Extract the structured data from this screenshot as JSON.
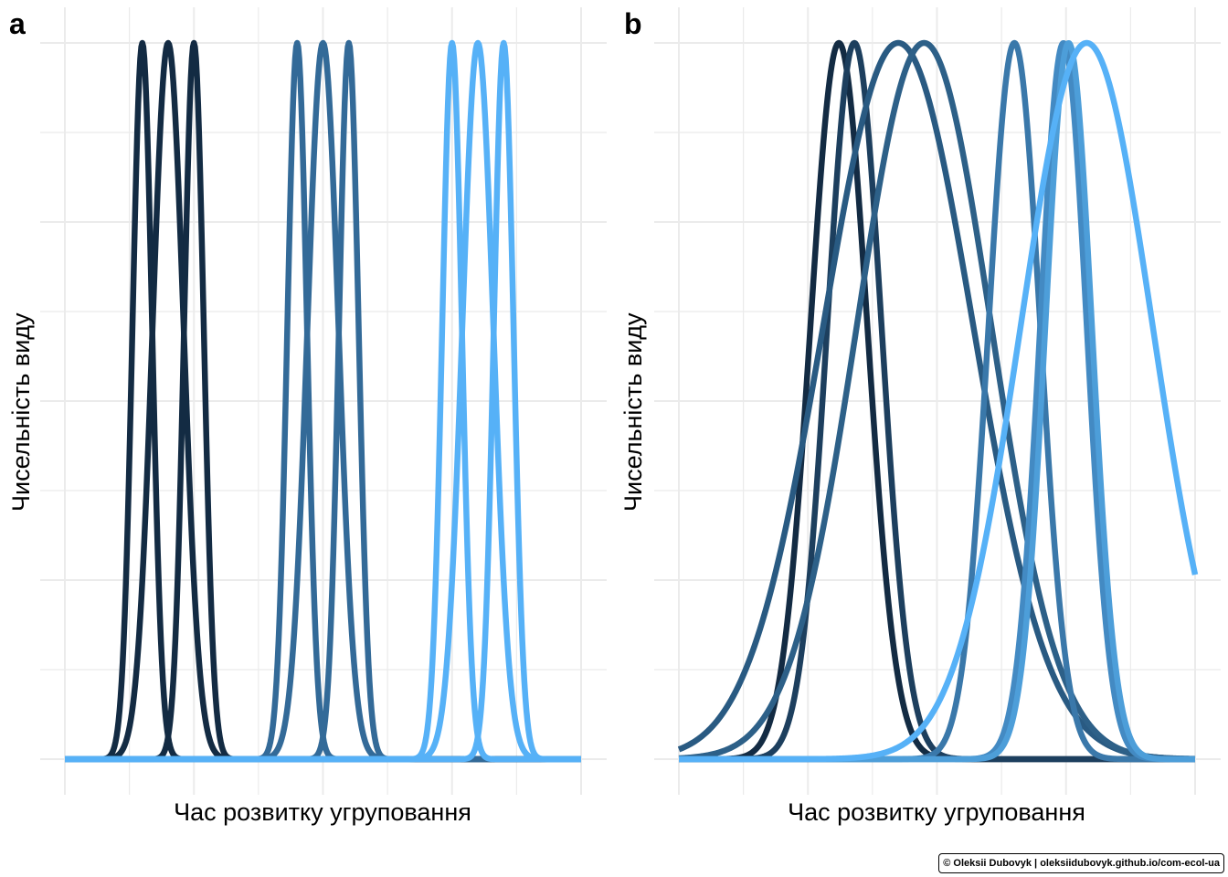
{
  "chart_data": [
    {
      "panel": "a",
      "type": "line",
      "xlabel": "Час розвитку угруповання",
      "ylabel": "Чисельність виду",
      "xlim": [
        0,
        20
      ],
      "ylim": [
        0,
        1
      ],
      "grid": true,
      "legend": "none",
      "series": [
        {
          "mu": 3.0,
          "sigma": 0.38,
          "color": "#132B43"
        },
        {
          "mu": 4.0,
          "sigma": 0.6,
          "color": "#132B43"
        },
        {
          "mu": 5.0,
          "sigma": 0.38,
          "color": "#132B43"
        },
        {
          "mu": 9.0,
          "sigma": 0.38,
          "color": "#336A98"
        },
        {
          "mu": 10.0,
          "sigma": 0.6,
          "color": "#336A98"
        },
        {
          "mu": 11.0,
          "sigma": 0.38,
          "color": "#336A98"
        },
        {
          "mu": 15.0,
          "sigma": 0.38,
          "color": "#56B1F7"
        },
        {
          "mu": 16.0,
          "sigma": 0.6,
          "color": "#56B1F7"
        },
        {
          "mu": 17.0,
          "sigma": 0.38,
          "color": "#56B1F7"
        }
      ]
    },
    {
      "panel": "b",
      "type": "line",
      "xlabel": "Час розвитку угруповання",
      "ylabel": "Чисельність виду",
      "xlim": [
        0,
        20
      ],
      "ylim": [
        0,
        1
      ],
      "grid": true,
      "legend": "none",
      "series": [
        {
          "mu": 6.2,
          "sigma": 1.1,
          "color": "#132B43"
        },
        {
          "mu": 6.8,
          "sigma": 1.05,
          "color": "#1D3F5E"
        },
        {
          "mu": 8.5,
          "sigma": 2.9,
          "color": "#295A82"
        },
        {
          "mu": 9.5,
          "sigma": 2.6,
          "color": "#2D6088"
        },
        {
          "mu": 13.0,
          "sigma": 1.0,
          "color": "#3A78AA"
        },
        {
          "mu": 14.9,
          "sigma": 0.9,
          "color": "#438AC3"
        },
        {
          "mu": 15.1,
          "sigma": 0.9,
          "color": "#4D9ED9"
        },
        {
          "mu": 15.8,
          "sigma": 2.55,
          "color": "#56B1F7"
        }
      ]
    }
  ],
  "credit": "© Oleksii Dubovyk | oleksiidubovyk.github.io/com-ecol-ua"
}
